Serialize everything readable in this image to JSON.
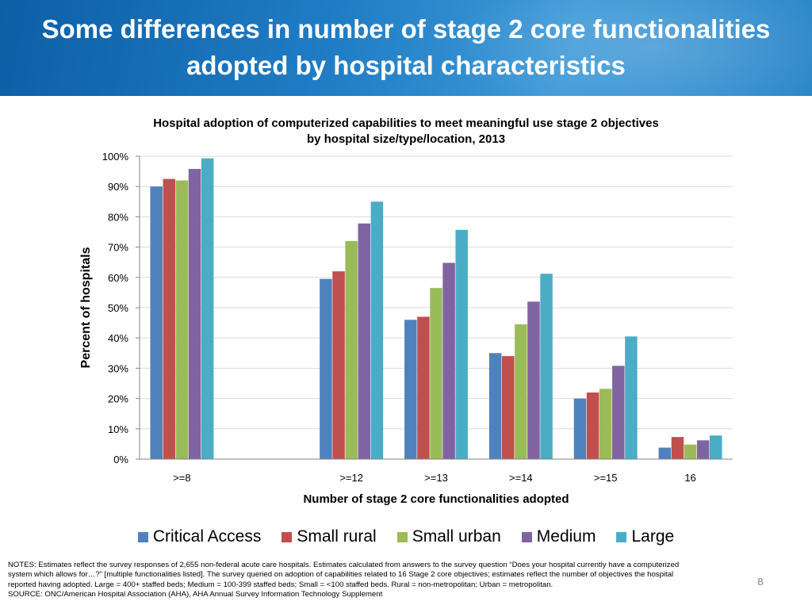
{
  "slide": {
    "title_line1": "Some differences in number of stage 2 core functionalities",
    "title_line2": "adopted by hospital characteristics",
    "notes_line1": "NOTES: Estimates reflect the survey responses of 2,655 non-federal acute care hospitals. Estimates calculated from answers to the survey question “Does your hospital currently have a computerized",
    "notes_line2": "system which allows for…?” [multiple functionalities listed]. The survey queried on adoption of  capabilities related to 16 Stage 2 core objectives; estimates reflect the number of objectives the hospital",
    "notes_line3": "reported having adopted.  Large = 400+ staffed beds; Medium = 100-399 staffed beds; Small = <100 staffed beds. Rural = non-metropolitan; Urban = metropolitan.",
    "source": "SOURCE: ONC/American Hospital Association (AHA), AHA Annual Survey Information Technology Supplement",
    "page_number": "8"
  },
  "chart_data": {
    "type": "bar",
    "title_line1": "Hospital adoption of computerized capabilities to meet meaningful use stage 2 objectives",
    "title_line2": "by hospital size/type/location, 2013",
    "xlabel": "Number of stage 2 core functionalities adopted",
    "ylabel": "Percent of hospitals",
    "ylim": [
      0,
      100
    ],
    "yticks": [
      0,
      10,
      20,
      30,
      40,
      50,
      60,
      70,
      80,
      90,
      100
    ],
    "ytick_labels": [
      "0%",
      "10%",
      "20%",
      "30%",
      "40%",
      "50%",
      "60%",
      "70%",
      "80%",
      "90%",
      "100%"
    ],
    "grid": true,
    "legend_position": "bottom",
    "categories": [
      ">=8",
      "",
      ">=12",
      ">=13",
      ">=14",
      ">=15",
      "16"
    ],
    "series": [
      {
        "name": "Critical Access",
        "color": "#4f81bd",
        "values": [
          90,
          null,
          59.5,
          46,
          35,
          20,
          3.8
        ]
      },
      {
        "name": "Small rural",
        "color": "#c0504d",
        "values": [
          92.5,
          null,
          62,
          47,
          34,
          22,
          7.3
        ]
      },
      {
        "name": "Small urban",
        "color": "#9bbb59",
        "values": [
          92,
          null,
          72,
          56.5,
          44.5,
          23.2,
          4.8
        ]
      },
      {
        "name": "Medium",
        "color": "#8064a2",
        "values": [
          95.8,
          null,
          77.8,
          64.8,
          52,
          30.8,
          6.2
        ]
      },
      {
        "name": "Large",
        "color": "#4bacc6",
        "values": [
          99.3,
          null,
          85,
          75.7,
          61.2,
          40.5,
          7.8
        ]
      }
    ]
  }
}
